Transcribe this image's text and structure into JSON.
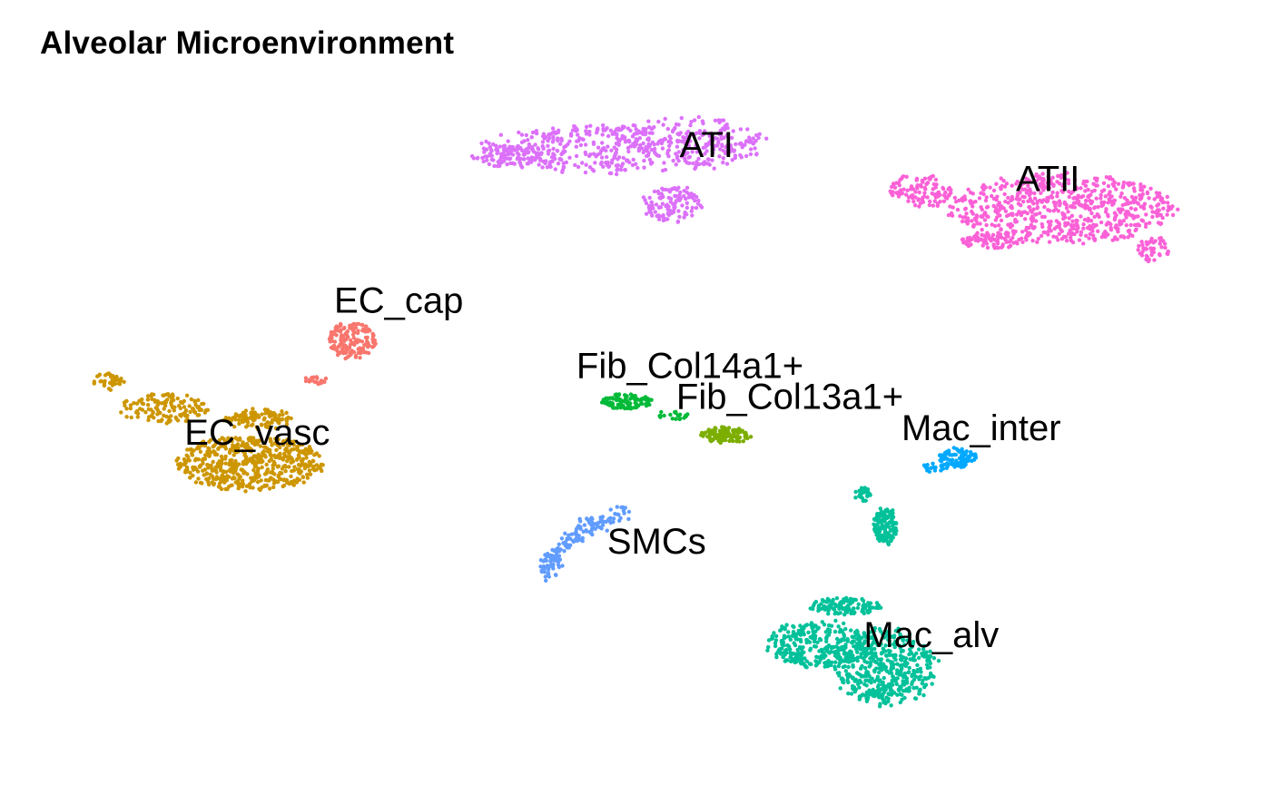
{
  "chart_data": {
    "type": "scatter",
    "title": "Alveolar Microenvironment",
    "xlabel": "",
    "ylabel": "",
    "grid": false,
    "axes_visible": false,
    "legend": "none",
    "series": [
      {
        "name": "ATI",
        "color": "#DC71FA",
        "x_range": [
          -12.0,
          4.0
        ],
        "y_range": [
          6.0,
          11.5
        ],
        "label_pos": [
          -4.0,
          9.0
        ]
      },
      {
        "name": "ATII",
        "color": "#FB61D7",
        "x_range": [
          9.5,
          25.0
        ],
        "y_range": [
          4.0,
          9.0
        ],
        "label_pos": [
          16.5,
          6.8
        ]
      },
      {
        "name": "EC_cap",
        "color": "#F8766D",
        "x_range": [
          -24.2,
          -20.0
        ],
        "y_range": [
          -2.5,
          1.0
        ],
        "label_pos": [
          -22.5,
          -1.0
        ]
      },
      {
        "name": "EC_vasc",
        "color": "#CD9600",
        "x_range": [
          -41.0,
          -24.5
        ],
        "y_range": [
          -12.0,
          -4.0
        ],
        "label_pos": [
          -31.0,
          -9.5
        ]
      },
      {
        "name": "Fib_Col14a1+",
        "color": "#00BA38",
        "x_range": [
          -7.0,
          0.0
        ],
        "y_range": [
          -5.5,
          -4.0
        ],
        "label_pos": [
          -5.0,
          -5.2
        ]
      },
      {
        "name": "Fib_Col13a1+",
        "color": "#7CAE00",
        "x_range": [
          0.0,
          4.0
        ],
        "y_range": [
          -7.0,
          -5.5
        ],
        "label_pos": [
          1.0,
          -7.2
        ]
      },
      {
        "name": "Mac_inter",
        "color": "#00A9FF",
        "x_range": [
          10.0,
          15.0
        ],
        "y_range": [
          -9.5,
          -7.0
        ],
        "label_pos": [
          12.5,
          -9.2
        ]
      },
      {
        "name": "SMCs",
        "color": "#619CFF",
        "x_range": [
          -8.0,
          -2.0
        ],
        "y_range": [
          -18.0,
          -12.0
        ],
        "label_pos": [
          -7.0,
          -16.5
        ]
      },
      {
        "name": "Mac_alv",
        "color": "#00C19A",
        "x_range": [
          5.0,
          17.0
        ],
        "y_range": [
          -27.0,
          -10.0
        ],
        "label_pos": [
          9.5,
          -22.5
        ]
      }
    ]
  }
}
